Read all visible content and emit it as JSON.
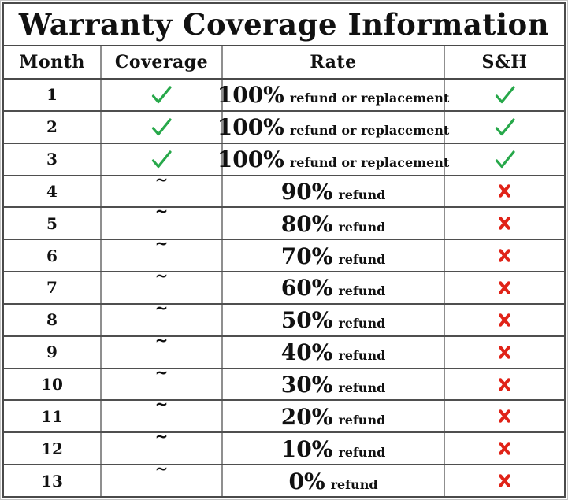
{
  "title": "Warranty Coverage Information",
  "table": {
    "columns": [
      {
        "label": "Month"
      },
      {
        "label": "Coverage"
      },
      {
        "label": "Rate"
      },
      {
        "label": "S&H"
      }
    ],
    "rows": [
      {
        "month": "1",
        "coverage": "check",
        "rate_value": "100%",
        "rate_label": "refund or replacement",
        "sh": "check"
      },
      {
        "month": "2",
        "coverage": "check",
        "rate_value": "100%",
        "rate_label": "refund or replacement",
        "sh": "check"
      },
      {
        "month": "3",
        "coverage": "check",
        "rate_value": "100%",
        "rate_label": "refund or replacement",
        "sh": "check"
      },
      {
        "month": "4",
        "coverage": "tilde",
        "rate_value": "90%",
        "rate_label": "refund",
        "sh": "cross"
      },
      {
        "month": "5",
        "coverage": "tilde",
        "rate_value": "80%",
        "rate_label": "refund",
        "sh": "cross"
      },
      {
        "month": "6",
        "coverage": "tilde",
        "rate_value": "70%",
        "rate_label": "refund",
        "sh": "cross"
      },
      {
        "month": "7",
        "coverage": "tilde",
        "rate_value": "60%",
        "rate_label": "refund",
        "sh": "cross"
      },
      {
        "month": "8",
        "coverage": "tilde",
        "rate_value": "50%",
        "rate_label": "refund",
        "sh": "cross"
      },
      {
        "month": "9",
        "coverage": "tilde",
        "rate_value": "40%",
        "rate_label": "refund",
        "sh": "cross"
      },
      {
        "month": "10",
        "coverage": "tilde",
        "rate_value": "30%",
        "rate_label": "refund",
        "sh": "cross"
      },
      {
        "month": "11",
        "coverage": "tilde",
        "rate_value": "20%",
        "rate_label": "refund",
        "sh": "cross"
      },
      {
        "month": "12",
        "coverage": "tilde",
        "rate_value": "10%",
        "rate_label": "refund",
        "sh": "cross"
      },
      {
        "month": "13",
        "coverage": "tilde",
        "rate_value": "0%",
        "rate_label": "refund",
        "sh": "cross"
      }
    ]
  },
  "glyphs": {
    "check": "✓",
    "cross": "✘",
    "tilde": "~"
  },
  "colors": {
    "check_green": "#27a84a",
    "cross_red": "#e02318"
  },
  "chart_data": {
    "type": "table",
    "title": "Warranty Coverage Information",
    "columns": [
      "Month",
      "Coverage",
      "Rate",
      "S&H"
    ],
    "rows": [
      [
        "1",
        "✓",
        "100% refund or replacement",
        "✓"
      ],
      [
        "2",
        "✓",
        "100% refund or replacement",
        "✓"
      ],
      [
        "3",
        "✓",
        "100% refund or replacement",
        "✓"
      ],
      [
        "4",
        "~",
        "90% refund",
        "✘"
      ],
      [
        "5",
        "~",
        "80% refund",
        "✘"
      ],
      [
        "6",
        "~",
        "70% refund",
        "✘"
      ],
      [
        "7",
        "~",
        "60% refund",
        "✘"
      ],
      [
        "8",
        "~",
        "50% refund",
        "✘"
      ],
      [
        "9",
        "~",
        "40% refund",
        "✘"
      ],
      [
        "10",
        "~",
        "30% refund",
        "✘"
      ],
      [
        "11",
        "~",
        "20% refund",
        "✘"
      ],
      [
        "12",
        "~",
        "10% refund",
        "✘"
      ],
      [
        "13",
        "~",
        "0% refund",
        "✘"
      ]
    ],
    "refund_percent_by_month": [
      100,
      100,
      100,
      90,
      80,
      70,
      60,
      50,
      40,
      30,
      20,
      10,
      0
    ]
  }
}
